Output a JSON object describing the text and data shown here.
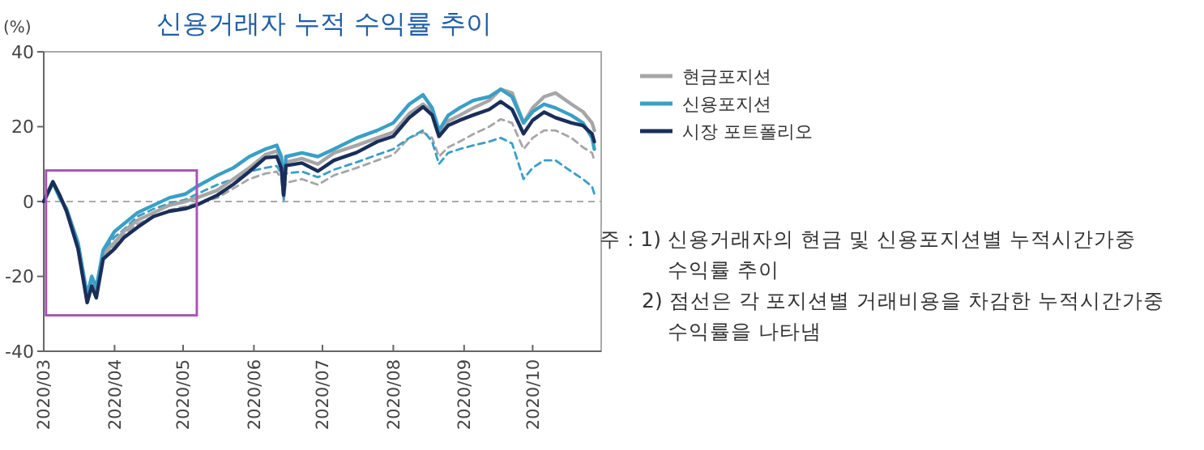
{
  "chart_data": {
    "type": "line",
    "title": "신용거래자 누적 수익률 추이",
    "ylabel": "(%)",
    "x": [
      "2020-03-01",
      "2020-03-05",
      "2020-03-08",
      "2020-03-11",
      "2020-03-16",
      "2020-03-20",
      "2020-03-22",
      "2020-03-24",
      "2020-03-27",
      "2020-04-01",
      "2020-04-05",
      "2020-04-11",
      "2020-04-18",
      "2020-04-25",
      "2020-05-02",
      "2020-05-07",
      "2020-05-16",
      "2020-05-23",
      "2020-05-30",
      "2020-06-06",
      "2020-06-11",
      "2020-06-13",
      "2020-06-14",
      "2020-06-15",
      "2020-06-22",
      "2020-06-29",
      "2020-07-06",
      "2020-07-16",
      "2020-07-25",
      "2020-08-01",
      "2020-08-08",
      "2020-08-14",
      "2020-08-18",
      "2020-08-21",
      "2020-08-25",
      "2020-08-30",
      "2020-09-05",
      "2020-09-12",
      "2020-09-17",
      "2020-09-22",
      "2020-09-27",
      "2020-10-01",
      "2020-10-06",
      "2020-10-11",
      "2020-10-18",
      "2020-10-23",
      "2020-10-27",
      "2020-10-28"
    ],
    "series": [
      {
        "color": "#a6a6a6",
        "line_style": "dashed",
        "values": [
          0,
          5,
          1.3,
          -2.8,
          -12.5,
          -26.5,
          -22,
          -25,
          -14.5,
          -11.8,
          -8.8,
          -6,
          -4,
          -2.3,
          -1.3,
          -0.5,
          1,
          3.5,
          6,
          7.5,
          8,
          6,
          0,
          5,
          6,
          4.5,
          7,
          9,
          11,
          12.5,
          17,
          18.5,
          17,
          12,
          14.5,
          16,
          18,
          20,
          22,
          21,
          14,
          17,
          19,
          19,
          17,
          14.5,
          13,
          11
        ]
      },
      {
        "color": "#3a9fc6",
        "line_style": "dashed",
        "values": [
          0,
          5,
          0.8,
          -2.5,
          -11.5,
          -25.5,
          -20.5,
          -23.5,
          -13.5,
          -9.5,
          -7.5,
          -4,
          -2,
          -0.5,
          0.5,
          2,
          4.5,
          6,
          8,
          9,
          9.5,
          7.5,
          0.5,
          7.5,
          8,
          6.5,
          8.5,
          10.5,
          12.5,
          14,
          17,
          19,
          16,
          10,
          13,
          14,
          15,
          16,
          17,
          15.5,
          6,
          9,
          11,
          11,
          8,
          6,
          4,
          2
        ]
      },
      {
        "name": "현금포지션",
        "color": "#a6a6a6",
        "line_style": "solid",
        "values": [
          0,
          5,
          1.5,
          -2.5,
          -12,
          -26,
          -21.5,
          -24.5,
          -14,
          -11,
          -8,
          -5,
          -3,
          -1,
          0,
          1,
          3,
          6,
          9,
          12.5,
          13.5,
          11,
          2,
          10.5,
          11.5,
          10,
          13,
          15,
          17,
          18.5,
          23.5,
          26,
          24,
          18,
          21.5,
          23,
          25,
          27,
          30,
          29,
          21,
          25,
          28,
          29,
          26,
          24,
          21,
          19
        ]
      },
      {
        "name": "신용포지션",
        "color": "#3a9fc6",
        "line_style": "solid",
        "values": [
          0,
          5,
          1,
          -2,
          -11,
          -25,
          -20,
          -23,
          -13,
          -8,
          -6,
          -3,
          -1,
          1,
          2,
          4,
          7,
          9,
          12,
          14,
          15,
          12,
          2,
          12,
          13,
          12,
          14,
          17,
          19,
          21,
          26,
          28.5,
          25,
          19,
          23,
          25,
          27,
          28,
          30,
          28,
          21,
          24,
          26,
          25,
          23,
          21,
          17,
          14
        ]
      },
      {
        "name": "시장 포트폴리오",
        "color": "#1a2e5a",
        "line_style": "solid",
        "values": [
          0,
          5.3,
          1.7,
          -2.6,
          -12.6,
          -27,
          -22.6,
          -25.7,
          -15.4,
          -12.6,
          -9.7,
          -6.9,
          -4,
          -2.6,
          -1.9,
          -0.9,
          1.7,
          4.6,
          8,
          11.7,
          12,
          8.9,
          1.7,
          9.6,
          10.3,
          8.1,
          11,
          13.1,
          16,
          17.4,
          22.4,
          25.3,
          23.1,
          17.4,
          20.3,
          21.7,
          23.1,
          24.6,
          26.7,
          24.6,
          18.1,
          21.7,
          23.9,
          22.4,
          21,
          20.3,
          18.1,
          16
        ]
      }
    ],
    "xlim": [
      "2020-03-01",
      "2020-10-31"
    ],
    "xticks": [
      {
        "value": "2020-03-01",
        "label": "2020/03"
      },
      {
        "value": "2020-04-01",
        "label": "2020/04"
      },
      {
        "value": "2020-05-01",
        "label": "2020/05"
      },
      {
        "value": "2020-06-01",
        "label": "2020/06"
      },
      {
        "value": "2020-07-01",
        "label": "2020/07"
      },
      {
        "value": "2020-08-01",
        "label": "2020/08"
      },
      {
        "value": "2020-09-01",
        "label": "2020/09"
      },
      {
        "value": "2020-10-01",
        "label": "2020/10"
      }
    ],
    "ylim": [
      -40,
      40
    ],
    "yticks": [
      -40,
      -20,
      0,
      20,
      40
    ],
    "ref_lines": [
      {
        "axis": "y",
        "value": 0,
        "color": "#aaaaaa",
        "line_style": "dashed"
      }
    ],
    "grid": false,
    "legend": "right",
    "annotations": [
      "주 : 1) 신용거래자의 현금 및 신용포지션별 누적시간가중 수익률 추이",
      "2) 점선은 각 포지션별 거래비용을 차감한 누적시간가중 수익률을 나타냄"
    ]
  }
}
